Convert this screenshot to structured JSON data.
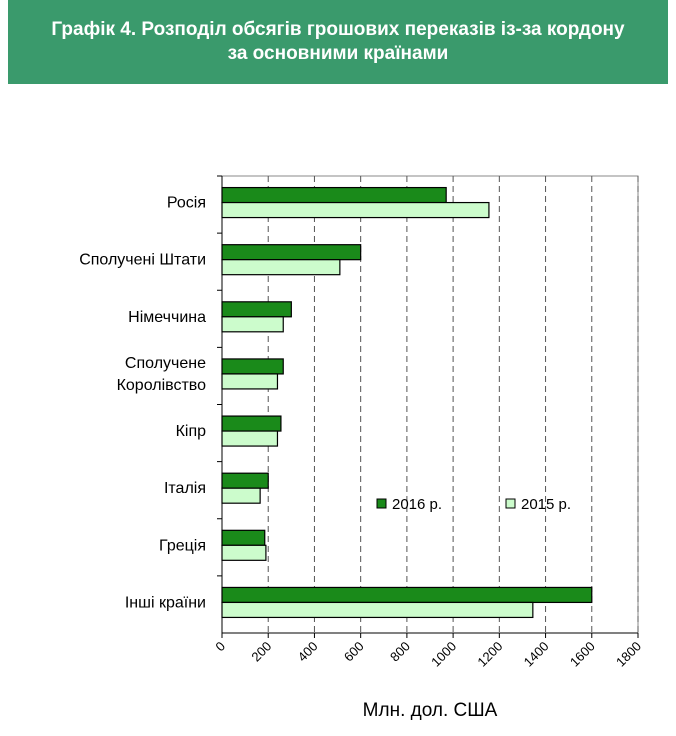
{
  "header": {
    "title_line1": "Графік 4. Розподіл обсягів грошових переказів із-за кордону",
    "title_line2": "за основними країнами"
  },
  "colors": {
    "header_bg": "#3a9a6c",
    "series_2016": "#1a8a1a",
    "series_2015": "#ccfccc"
  },
  "chart_data": {
    "type": "bar",
    "orientation": "horizontal",
    "categories": [
      [
        "Росія"
      ],
      [
        "Сполучені Штати"
      ],
      [
        "Німеччина"
      ],
      [
        "Сполучене",
        "Королівство"
      ],
      [
        "Кіпр"
      ],
      [
        "Італія"
      ],
      [
        "Греція"
      ],
      [
        "Інші країни"
      ]
    ],
    "series": [
      {
        "name": "2016 р.",
        "values": [
          970,
          600,
          300,
          265,
          255,
          200,
          185,
          1600
        ]
      },
      {
        "name": "2015 р.",
        "values": [
          1155,
          510,
          265,
          240,
          240,
          165,
          190,
          1345
        ]
      }
    ],
    "x_ticks": [
      "0",
      "200",
      "400",
      "600",
      "800",
      "1000",
      "1200",
      "1400",
      "1600",
      "1800"
    ],
    "xlim": [
      0,
      1800
    ],
    "xlabel": "Млн. дол. США",
    "legend_position": "inside-lower-right",
    "grid": "vertical-dashed"
  }
}
